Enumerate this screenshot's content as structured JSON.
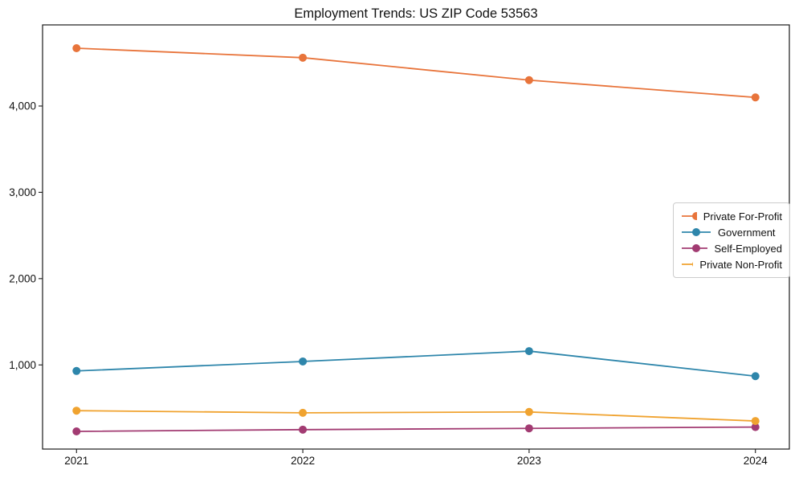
{
  "chart_data": {
    "type": "line",
    "title": "Employment Trends: US ZIP Code 53563",
    "xlabel": "",
    "ylabel": "",
    "categories": [
      "2021",
      "2022",
      "2023",
      "2024"
    ],
    "x": [
      2021,
      2022,
      2023,
      2024
    ],
    "series": [
      {
        "name": "Private For-Profit",
        "color": "#E8743B",
        "values": [
          4670,
          4560,
          4300,
          4100
        ]
      },
      {
        "name": "Government",
        "color": "#2E86AB",
        "values": [
          930,
          1040,
          1160,
          870
        ]
      },
      {
        "name": "Self-Employed",
        "color": "#A23B72",
        "values": [
          230,
          250,
          265,
          280
        ]
      },
      {
        "name": "Private Non-Profit",
        "color": "#F0A330",
        "values": [
          470,
          445,
          455,
          350
        ]
      }
    ],
    "yticks": {
      "values": [
        1000,
        2000,
        3000,
        4000
      ],
      "labels": [
        "1,000",
        "2,000",
        "3,000",
        "4,000"
      ]
    },
    "xlim": [
      2020.85,
      2024.15
    ],
    "ylim": [
      25,
      4940
    ],
    "grid": false,
    "legend_position": "middle-right",
    "spine_color": "#1a1a1a",
    "background": "#ffffff"
  }
}
